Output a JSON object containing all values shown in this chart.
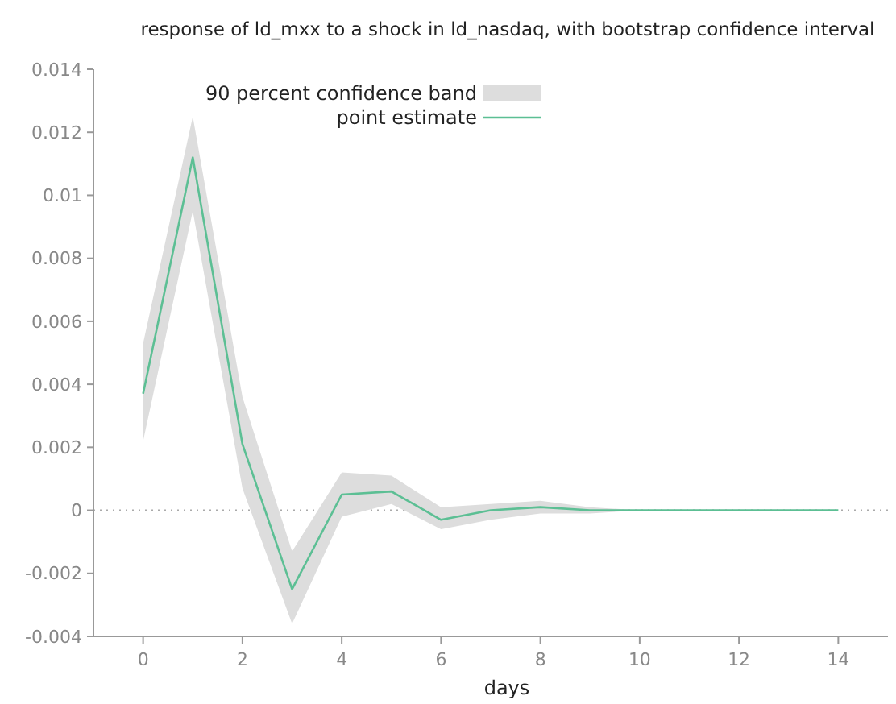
{
  "chart_data": {
    "type": "line",
    "title": "response of ld_mxx to a shock in ld_nasdaq, with bootstrap confidence interval",
    "xlabel": "days",
    "x": [
      0,
      1,
      2,
      3,
      4,
      5,
      6,
      7,
      8,
      9,
      10,
      11,
      12,
      13,
      14
    ],
    "series": [
      {
        "name": "point estimate",
        "color": "#5cbf94",
        "values": [
          0.0037,
          0.0112,
          0.0021,
          -0.0025,
          0.0005,
          0.0006,
          -0.0003,
          0,
          0.0001,
          0,
          0,
          0,
          0,
          0,
          0
        ],
        "lower": [
          0.0022,
          0.0095,
          0.0007,
          -0.0036,
          -0.0002,
          0.0002,
          -0.0006,
          -0.0003,
          -0.0001,
          -0.0001,
          0,
          0,
          0,
          0,
          0
        ],
        "upper": [
          0.0053,
          0.0125,
          0.0036,
          -0.0013,
          0.0012,
          0.0011,
          0.0001,
          0.0002,
          0.0003,
          0.0001,
          0,
          0,
          0,
          0,
          0
        ]
      }
    ],
    "annotations": [
      "90 percent confidence band"
    ],
    "xlim": [
      -1,
      15
    ],
    "xticks": [
      0,
      2,
      4,
      6,
      8,
      10,
      12,
      14
    ],
    "ylim": [
      -0.004,
      0.014
    ],
    "yticks": [
      -0.004,
      -0.002,
      0,
      0.002,
      0.004,
      0.006,
      0.008,
      0.01,
      0.012,
      0.014
    ],
    "ref_lines": [
      {
        "axis": "y",
        "value": 0,
        "color": "#aaaaaa",
        "line_style": "dotted"
      }
    ],
    "legend": "top left",
    "grid": false,
    "line_style": "solid",
    "marker": "none"
  }
}
